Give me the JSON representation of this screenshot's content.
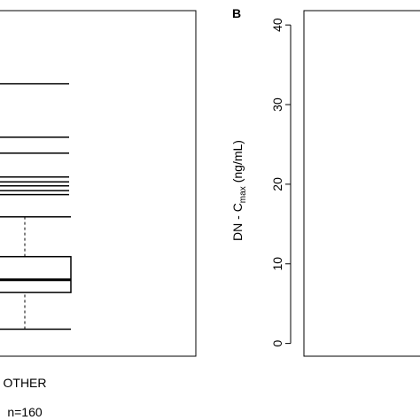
{
  "chart_data": [
    {
      "type": "boxplot",
      "categories": [
        "OTHER"
      ],
      "subtitle": "n=160",
      "ylim": [
        -1.6,
        41.8
      ],
      "box": {
        "whisker_low": 1.8,
        "q1": 6.4,
        "median": 8,
        "q3": 10.9,
        "whisker_high": 15.9
      },
      "outliers": [
        18.7,
        19.2,
        19.8,
        20.3,
        20.9,
        23.9,
        25.9,
        32.6
      ],
      "color": "#000000"
    },
    {
      "type": "empty",
      "panel_label": "B",
      "ylabel": {
        "main": "DN - C",
        "sub": "max",
        "unit": "(ng/mL)"
      },
      "ylim": [
        -1.6,
        41.8
      ],
      "yticks": [
        0,
        10,
        20,
        30,
        40
      ]
    }
  ]
}
